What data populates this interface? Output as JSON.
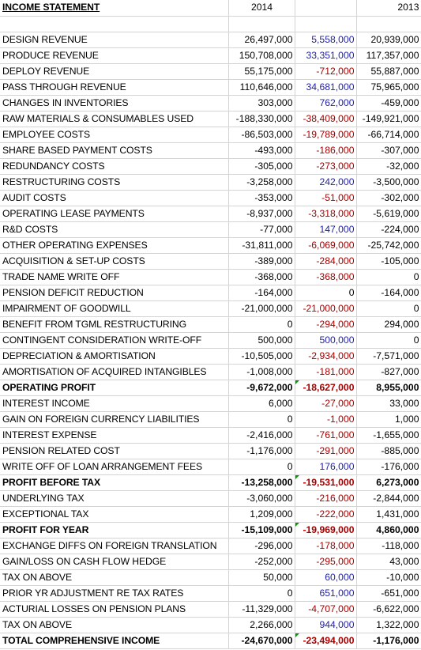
{
  "header": {
    "label": "INCOME STATEMENT",
    "col_2014": "2014",
    "col_var": "",
    "col_2013": "2013"
  },
  "rows": [
    {
      "label": "",
      "a": "",
      "v": "",
      "b": ""
    },
    {
      "label": "DESIGN REVENUE",
      "a": "26,497,000",
      "v": "5,558,000",
      "b": "20,939,000"
    },
    {
      "label": "PRODUCE REVENUE",
      "a": "150,708,000",
      "v": "33,351,000",
      "b": "117,357,000"
    },
    {
      "label": "DEPLOY REVENUE",
      "a": "55,175,000",
      "v": "-712,000",
      "b": "55,887,000"
    },
    {
      "label": "PASS THROUGH REVENUE",
      "a": "110,646,000",
      "v": "34,681,000",
      "b": "75,965,000"
    },
    {
      "label": "CHANGES IN INVENTORIES",
      "a": "303,000",
      "v": "762,000",
      "b": "-459,000"
    },
    {
      "label": "RAW MATERIALS & CONSUMABLES USED",
      "a": "-188,330,000",
      "v": "-38,409,000",
      "b": "-149,921,000"
    },
    {
      "label": "EMPLOYEE COSTS",
      "a": "-86,503,000",
      "v": "-19,789,000",
      "b": "-66,714,000"
    },
    {
      "label": "SHARE BASED PAYMENT COSTS",
      "a": "-493,000",
      "v": "-186,000",
      "b": "-307,000"
    },
    {
      "label": "REDUNDANCY COSTS",
      "a": "-305,000",
      "v": "-273,000",
      "b": "-32,000"
    },
    {
      "label": "RESTRUCTURING COSTS",
      "a": "-3,258,000",
      "v": "242,000",
      "b": "-3,500,000"
    },
    {
      "label": "AUDIT COSTS",
      "a": "-353,000",
      "v": "-51,000",
      "b": "-302,000"
    },
    {
      "label": "OPERATING LEASE PAYMENTS",
      "a": "-8,937,000",
      "v": "-3,318,000",
      "b": "-5,619,000"
    },
    {
      "label": "R&D COSTS",
      "a": "-77,000",
      "v": "147,000",
      "b": "-224,000"
    },
    {
      "label": "OTHER OPERATING EXPENSES",
      "a": "-31,811,000",
      "v": "-6,069,000",
      "b": "-25,742,000"
    },
    {
      "label": "ACQUISITION & SET-UP COSTS",
      "a": "-389,000",
      "v": "-284,000",
      "b": "-105,000"
    },
    {
      "label": "TRADE NAME WRITE OFF",
      "a": "-368,000",
      "v": "-368,000",
      "b": "0"
    },
    {
      "label": "PENSION DEFICIT REDUCTION",
      "a": "-164,000",
      "v": "0",
      "b": "-164,000"
    },
    {
      "label": "IMPAIRMENT OF GOODWILL",
      "a": "-21,000,000",
      "v": "-21,000,000",
      "b": "0"
    },
    {
      "label": "BENEFIT FROM TGML RESTRUCTURING",
      "a": "0",
      "v": "-294,000",
      "b": "294,000"
    },
    {
      "label": "CONTINGENT CONSIDERATION WRITE-OFF",
      "a": "500,000",
      "v": "500,000",
      "b": "0"
    },
    {
      "label": "DEPRECIATION & AMORTISATION",
      "a": "-10,505,000",
      "v": "-2,934,000",
      "b": "-7,571,000"
    },
    {
      "label": "AMORTISATION OF ACQUIRED INTANGIBLES",
      "a": "-1,008,000",
      "v": "-181,000",
      "b": "-827,000"
    },
    {
      "label": "OPERATING PROFIT",
      "a": "-9,672,000",
      "v": "-18,627,000",
      "b": "8,955,000",
      "bold": true
    },
    {
      "label": "INTEREST INCOME",
      "a": "6,000",
      "v": "-27,000",
      "b": "33,000"
    },
    {
      "label": "GAIN ON FOREIGN CURRENCY LIABILITIES",
      "a": "0",
      "v": "-1,000",
      "b": "1,000"
    },
    {
      "label": "INTEREST EXPENSE",
      "a": "-2,416,000",
      "v": "-761,000",
      "b": "-1,655,000"
    },
    {
      "label": "PENSION RELATED COST",
      "a": "-1,176,000",
      "v": "-291,000",
      "b": "-885,000"
    },
    {
      "label": "WRITE OFF OF LOAN ARRANGEMENT FEES",
      "a": "0",
      "v": "176,000",
      "b": "-176,000"
    },
    {
      "label": "PROFIT BEFORE TAX",
      "a": "-13,258,000",
      "v": "-19,531,000",
      "b": "6,273,000",
      "bold": true
    },
    {
      "label": "UNDERLYING TAX",
      "a": "-3,060,000",
      "v": "-216,000",
      "b": "-2,844,000"
    },
    {
      "label": "EXCEPTIONAL TAX",
      "a": "1,209,000",
      "v": "-222,000",
      "b": "1,431,000"
    },
    {
      "label": "PROFIT FOR YEAR",
      "a": "-15,109,000",
      "v": "-19,969,000",
      "b": "4,860,000",
      "bold": true
    },
    {
      "label": "EXCHANGE DIFFS ON FOREIGN TRANSLATION",
      "a": "-296,000",
      "v": "-178,000",
      "b": "-118,000"
    },
    {
      "label": "GAIN/LOSS ON CASH FLOW HEDGE",
      "a": "-252,000",
      "v": "-295,000",
      "b": "43,000"
    },
    {
      "label": "TAX ON ABOVE",
      "a": "50,000",
      "v": "60,000",
      "b": "-10,000"
    },
    {
      "label": "PRIOR YR ADJUSTMENT RE TAX RATES",
      "a": "0",
      "v": "651,000",
      "b": "-651,000"
    },
    {
      "label": "ACTURIAL LOSSES ON PENSION PLANS",
      "a": "-11,329,000",
      "v": "-4,707,000",
      "b": "-6,622,000"
    },
    {
      "label": "TAX ON ABOVE",
      "a": "2,266,000",
      "v": "944,000",
      "b": "1,322,000"
    },
    {
      "label": "TOTAL COMPREHENSIVE INCOME",
      "a": "-24,670,000",
      "v": "-23,494,000",
      "b": "-1,176,000",
      "bold": true
    }
  ],
  "colors": {
    "positive_variance": "#1f1fa8",
    "negative_variance": "#a80000",
    "gridline": "#d4d4d4",
    "error_marker": "#1a8a1a"
  }
}
